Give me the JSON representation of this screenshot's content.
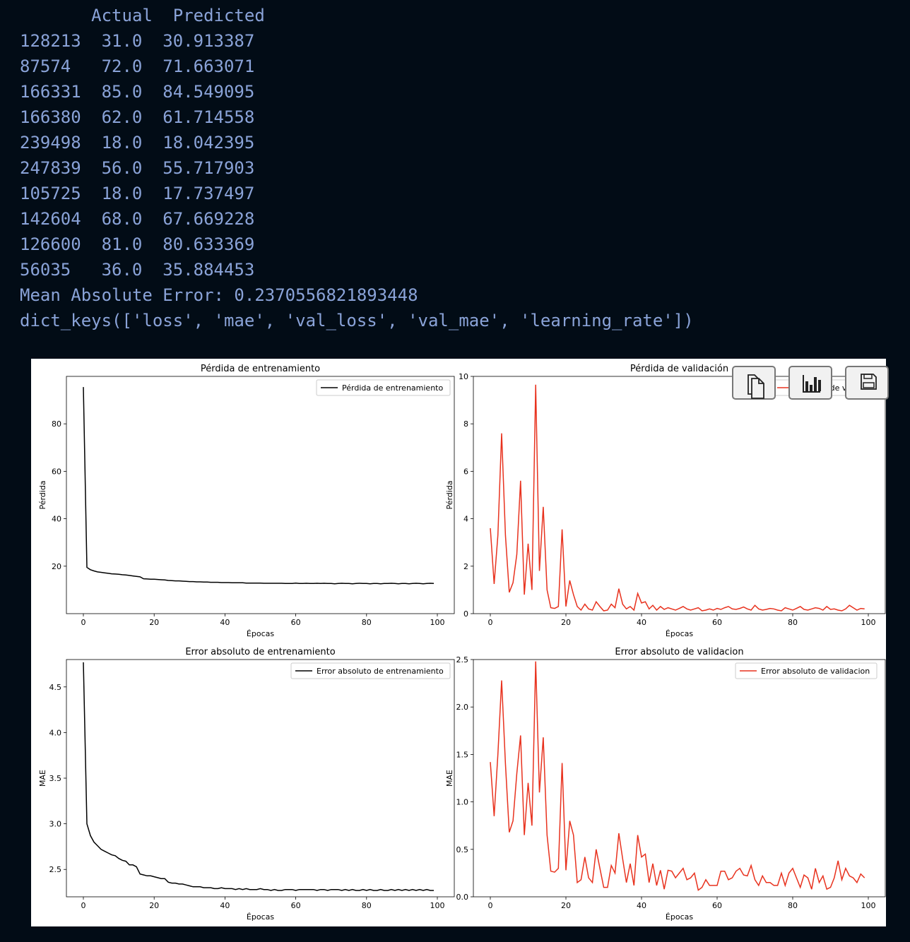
{
  "console": {
    "header": "       Actual  Predicted",
    "rows": [
      {
        "index": "128213",
        "actual": "31.0",
        "predicted": "30.913387"
      },
      {
        "index": "87574",
        "actual": "72.0",
        "predicted": "71.663071"
      },
      {
        "index": "166331",
        "actual": "85.0",
        "predicted": "84.549095"
      },
      {
        "index": "166380",
        "actual": "62.0",
        "predicted": "61.714558"
      },
      {
        "index": "239498",
        "actual": "18.0",
        "predicted": "18.042395"
      },
      {
        "index": "247839",
        "actual": "56.0",
        "predicted": "55.717903"
      },
      {
        "index": "105725",
        "actual": "18.0",
        "predicted": "17.737497"
      },
      {
        "index": "142604",
        "actual": "68.0",
        "predicted": "67.669228"
      },
      {
        "index": "126600",
        "actual": "81.0",
        "predicted": "80.633369"
      },
      {
        "index": "56035",
        "actual": "36.0",
        "predicted": "35.884453"
      }
    ],
    "mae_line": "Mean Absolute Error: 0.2370556821893448",
    "keys_line": "dict_keys(['loss', 'mae', 'val_loss', 'val_mae', 'learning_rate'])"
  },
  "colors": {
    "train": "#000000",
    "val": "#e8321e",
    "console_text": "#8aa3d8",
    "background": "#020c16"
  },
  "toolbar": {
    "icons": [
      "copy-icon",
      "chart-icon",
      "save-icon"
    ]
  },
  "chart_data": [
    {
      "type": "line",
      "title": "Pérdida de entrenamiento",
      "xlabel": "Épocas",
      "ylabel": "Pérdida",
      "xlim": [
        0,
        100
      ],
      "ylim": [
        0,
        100
      ],
      "xticks": [
        0,
        20,
        40,
        60,
        80,
        100
      ],
      "yticks": [
        20,
        40,
        60,
        80
      ],
      "legend_position": "top-right",
      "series": [
        {
          "name": "Pérdida de entrenamiento",
          "color": "#000000",
          "values": [
            95.5,
            19.5,
            18.5,
            18.0,
            17.6,
            17.4,
            17.2,
            17.0,
            16.8,
            16.7,
            16.6,
            16.4,
            16.3,
            16.1,
            15.9,
            15.7,
            15.5,
            14.7,
            14.6,
            14.5,
            14.5,
            14.4,
            14.3,
            14.2,
            14.0,
            13.9,
            13.8,
            13.8,
            13.7,
            13.6,
            13.5,
            13.5,
            13.4,
            13.4,
            13.3,
            13.3,
            13.2,
            13.2,
            13.2,
            13.1,
            13.1,
            13.1,
            13.0,
            13.0,
            13.0,
            13.0,
            12.9,
            12.9,
            12.9,
            12.9,
            12.9,
            12.8,
            12.8,
            12.8,
            12.8,
            12.8,
            12.8,
            12.7,
            12.7,
            12.7,
            12.9,
            12.7,
            12.7,
            12.8,
            12.7,
            12.7,
            12.8,
            12.7,
            12.8,
            12.7,
            12.7,
            12.6,
            12.7,
            12.8,
            12.7,
            12.7,
            12.6,
            12.7,
            12.8,
            12.7,
            12.7,
            12.6,
            12.7,
            12.7,
            12.6,
            12.7,
            12.7,
            12.8,
            12.7,
            12.6,
            12.7,
            12.7,
            12.6,
            12.7,
            12.8,
            12.7,
            12.6,
            12.7,
            12.8,
            12.7
          ]
        }
      ]
    },
    {
      "type": "line",
      "title": "Pérdida de validación",
      "xlabel": "Épocas",
      "ylabel": "Pérdida",
      "xlim": [
        0,
        100
      ],
      "ylim": [
        0,
        10
      ],
      "xticks": [
        0,
        20,
        40,
        60,
        80,
        100
      ],
      "yticks": [
        0,
        2,
        4,
        6,
        8,
        10
      ],
      "legend_position": "top-right",
      "series": [
        {
          "name": "Pérdida de validación",
          "color": "#e8321e",
          "values": [
            3.6,
            1.25,
            3.3,
            7.6,
            3.3,
            0.9,
            1.3,
            2.5,
            5.6,
            0.8,
            2.95,
            1.0,
            9.65,
            1.8,
            4.5,
            1.0,
            0.25,
            0.22,
            0.3,
            3.55,
            0.3,
            1.4,
            0.8,
            0.3,
            0.15,
            0.4,
            0.2,
            0.15,
            0.5,
            0.3,
            0.12,
            0.15,
            0.4,
            0.25,
            1.05,
            0.4,
            0.2,
            0.3,
            0.15,
            0.85,
            0.45,
            0.5,
            0.2,
            0.35,
            0.15,
            0.3,
            0.18,
            0.25,
            0.2,
            0.15,
            0.22,
            0.3,
            0.2,
            0.15,
            0.2,
            0.25,
            0.12,
            0.15,
            0.2,
            0.15,
            0.22,
            0.18,
            0.25,
            0.3,
            0.2,
            0.18,
            0.22,
            0.28,
            0.2,
            0.15,
            0.35,
            0.2,
            0.15,
            0.18,
            0.22,
            0.2,
            0.15,
            0.12,
            0.25,
            0.2,
            0.15,
            0.22,
            0.3,
            0.18,
            0.15,
            0.2,
            0.25,
            0.22,
            0.15,
            0.3,
            0.18,
            0.2,
            0.15,
            0.12,
            0.2,
            0.35,
            0.25,
            0.15,
            0.22,
            0.2
          ]
        }
      ]
    },
    {
      "type": "line",
      "title": "Error absoluto de entrenamiento",
      "xlabel": "Épocas",
      "ylabel": "MAE",
      "xlim": [
        0,
        100
      ],
      "ylim": [
        2.2,
        4.8
      ],
      "xticks": [
        0,
        20,
        40,
        60,
        80,
        100
      ],
      "yticks": [
        2.5,
        3.0,
        3.5,
        4.0,
        4.5
      ],
      "legend_position": "top-right",
      "series": [
        {
          "name": "Error absoluto de entrenamiento",
          "color": "#000000",
          "values": [
            4.77,
            3.0,
            2.87,
            2.8,
            2.76,
            2.72,
            2.7,
            2.68,
            2.66,
            2.65,
            2.62,
            2.6,
            2.59,
            2.55,
            2.55,
            2.53,
            2.45,
            2.44,
            2.43,
            2.43,
            2.42,
            2.41,
            2.4,
            2.4,
            2.36,
            2.35,
            2.35,
            2.34,
            2.34,
            2.33,
            2.32,
            2.31,
            2.31,
            2.31,
            2.3,
            2.3,
            2.3,
            2.29,
            2.29,
            2.3,
            2.29,
            2.29,
            2.29,
            2.28,
            2.29,
            2.28,
            2.29,
            2.28,
            2.28,
            2.28,
            2.29,
            2.28,
            2.28,
            2.27,
            2.28,
            2.27,
            2.27,
            2.28,
            2.28,
            2.28,
            2.27,
            2.28,
            2.28,
            2.28,
            2.28,
            2.28,
            2.27,
            2.28,
            2.28,
            2.27,
            2.28,
            2.28,
            2.28,
            2.27,
            2.28,
            2.27,
            2.28,
            2.27,
            2.27,
            2.28,
            2.27,
            2.28,
            2.27,
            2.27,
            2.28,
            2.27,
            2.27,
            2.28,
            2.27,
            2.28,
            2.27,
            2.28,
            2.27,
            2.28,
            2.27,
            2.28,
            2.27,
            2.28,
            2.27,
            2.27
          ]
        }
      ]
    },
    {
      "type": "line",
      "title": "Error absoluto de validacion",
      "xlabel": "Épocas",
      "ylabel": "MAE",
      "xlim": [
        0,
        100
      ],
      "ylim": [
        0,
        2.5
      ],
      "xticks": [
        0,
        20,
        40,
        60,
        80,
        100
      ],
      "yticks": [
        0.0,
        0.5,
        1.0,
        1.5,
        2.0,
        2.5
      ],
      "legend_position": "top-right",
      "series": [
        {
          "name": "Error absoluto de validacion",
          "color": "#e8321e",
          "values": [
            1.42,
            0.85,
            1.5,
            2.28,
            1.4,
            0.68,
            0.8,
            1.3,
            1.7,
            0.65,
            1.2,
            0.75,
            2.48,
            1.1,
            1.68,
            0.65,
            0.27,
            0.26,
            0.3,
            1.41,
            0.28,
            0.8,
            0.65,
            0.15,
            0.18,
            0.42,
            0.2,
            0.15,
            0.5,
            0.3,
            0.1,
            0.1,
            0.33,
            0.25,
            0.67,
            0.4,
            0.15,
            0.35,
            0.12,
            0.65,
            0.42,
            0.45,
            0.15,
            0.35,
            0.12,
            0.28,
            0.08,
            0.28,
            0.27,
            0.2,
            0.25,
            0.3,
            0.18,
            0.2,
            0.25,
            0.07,
            0.1,
            0.18,
            0.12,
            0.12,
            0.12,
            0.27,
            0.27,
            0.18,
            0.2,
            0.27,
            0.3,
            0.23,
            0.22,
            0.33,
            0.18,
            0.12,
            0.22,
            0.15,
            0.15,
            0.12,
            0.12,
            0.25,
            0.12,
            0.25,
            0.3,
            0.2,
            0.1,
            0.23,
            0.2,
            0.08,
            0.3,
            0.15,
            0.22,
            0.08,
            0.1,
            0.2,
            0.38,
            0.18,
            0.3,
            0.22,
            0.2,
            0.15,
            0.24,
            0.2
          ]
        }
      ]
    }
  ]
}
